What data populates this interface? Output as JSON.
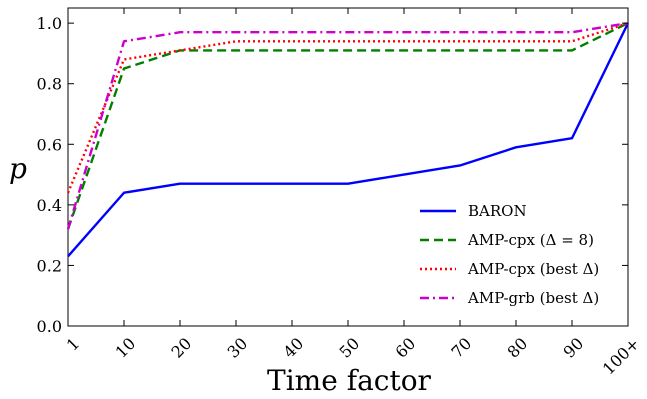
{
  "chart_data": {
    "type": "line",
    "xlabel": "Time factor",
    "ylabel": "p",
    "categories": [
      "1",
      "10",
      "20",
      "30",
      "40",
      "50",
      "60",
      "70",
      "80",
      "90",
      "100+"
    ],
    "yticks": [
      "0.0",
      "0.2",
      "0.4",
      "0.6",
      "0.8",
      "1.0"
    ],
    "ylim": [
      0.0,
      1.05
    ],
    "legend_position": "lower-right",
    "grid": false,
    "series": [
      {
        "name": "BARON",
        "color": "#0000ff",
        "style": "solid",
        "values": [
          0.23,
          0.44,
          0.47,
          0.47,
          0.47,
          0.47,
          0.5,
          0.53,
          0.59,
          0.62,
          1.0
        ]
      },
      {
        "name": "AMP-cpx (Δ = 8)",
        "color": "#008000",
        "style": "dashed",
        "values": [
          0.32,
          0.85,
          0.91,
          0.91,
          0.91,
          0.91,
          0.91,
          0.91,
          0.91,
          0.91,
          1.0
        ]
      },
      {
        "name": "AMP-cpx (best Δ)",
        "color": "#ff0000",
        "style": "dotted",
        "values": [
          0.44,
          0.88,
          0.91,
          0.94,
          0.94,
          0.94,
          0.94,
          0.94,
          0.94,
          0.94,
          1.0
        ]
      },
      {
        "name": "AMP-grb (best Δ)",
        "color": "#cc00cc",
        "style": "dashdot",
        "values": [
          0.32,
          0.94,
          0.97,
          0.97,
          0.97,
          0.97,
          0.97,
          0.97,
          0.97,
          0.97,
          1.0
        ]
      }
    ]
  }
}
